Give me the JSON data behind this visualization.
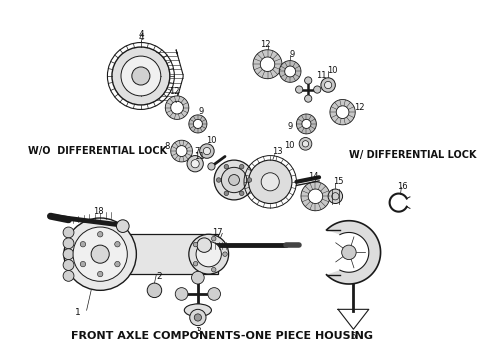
{
  "title": "FRONT AXLE COMPONENTS-ONE PIECE HOUSING",
  "label_wo": "W/O  DIFFERENTIAL LOCK",
  "label_w": "W/ DIFFERENTIAL LOCK",
  "bg_color": "#ffffff",
  "title_fontsize": 8.0,
  "label_fontsize": 7.0,
  "fig_width": 4.9,
  "fig_height": 3.6,
  "dpi": 100,
  "line_color": "#1a1a1a",
  "text_color": "#111111",
  "gray_fill": "#d8d8d8",
  "light_fill": "#efefef"
}
